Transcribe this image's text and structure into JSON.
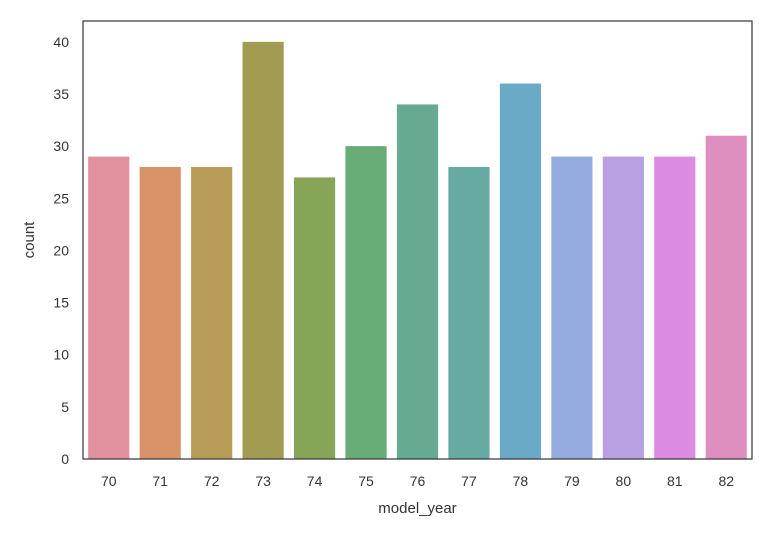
{
  "chart_data": {
    "type": "bar",
    "title": "",
    "xlabel": "model_year",
    "ylabel": "count",
    "categories": [
      "70",
      "71",
      "72",
      "73",
      "74",
      "75",
      "76",
      "77",
      "78",
      "79",
      "80",
      "81",
      "82"
    ],
    "values": [
      29,
      28,
      28,
      40,
      27,
      30,
      34,
      28,
      36,
      29,
      29,
      29,
      31
    ],
    "colors": [
      "#e1919d",
      "#d89368",
      "#b99c58",
      "#a19c52",
      "#86a556",
      "#67ab76",
      "#65aa91",
      "#67a9a3",
      "#6aaac6",
      "#94abe0",
      "#b8a0e3",
      "#dc8be3",
      "#de8fbf"
    ],
    "ylim": [
      0,
      42
    ],
    "yticks": [
      0,
      5,
      10,
      15,
      20,
      25,
      30,
      35,
      40
    ],
    "grid": false,
    "legend": "none"
  }
}
